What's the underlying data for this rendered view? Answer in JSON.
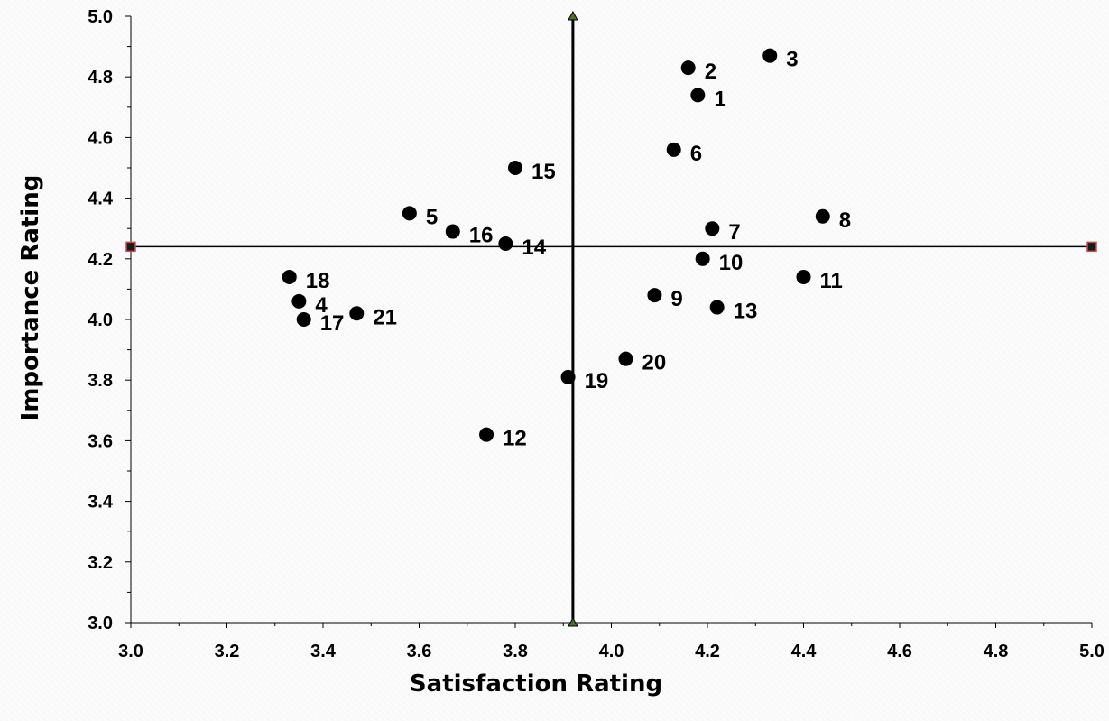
{
  "chart_data": {
    "type": "scatter",
    "title": "",
    "xlabel": "Satisfaction Rating",
    "ylabel": "Importance Rating",
    "xlim": [
      3.0,
      5.0
    ],
    "ylim": [
      3.0,
      5.0
    ],
    "x_ticks": [
      "3.0",
      "3.2",
      "3.4",
      "3.6",
      "3.8",
      "4.0",
      "4.2",
      "4.4",
      "4.6",
      "4.8",
      "5.0"
    ],
    "y_ticks": [
      "3.0",
      "3.2",
      "3.4",
      "3.6",
      "3.8",
      "4.0",
      "4.2",
      "4.4",
      "4.6",
      "4.8",
      "5.0"
    ],
    "grid": false,
    "reference_lines": {
      "vertical_x": 3.92,
      "horizontal_y": 4.24
    },
    "marker_color": "#000000",
    "points": [
      {
        "label": "1",
        "x": 4.18,
        "y": 4.74
      },
      {
        "label": "2",
        "x": 4.16,
        "y": 4.83
      },
      {
        "label": "3",
        "x": 4.33,
        "y": 4.87
      },
      {
        "label": "4",
        "x": 3.35,
        "y": 4.06
      },
      {
        "label": "5",
        "x": 3.58,
        "y": 4.35
      },
      {
        "label": "6",
        "x": 4.13,
        "y": 4.56
      },
      {
        "label": "7",
        "x": 4.21,
        "y": 4.3
      },
      {
        "label": "8",
        "x": 4.44,
        "y": 4.34
      },
      {
        "label": "9",
        "x": 4.09,
        "y": 4.08
      },
      {
        "label": "10",
        "x": 4.19,
        "y": 4.2
      },
      {
        "label": "11",
        "x": 4.4,
        "y": 4.14
      },
      {
        "label": "12",
        "x": 3.74,
        "y": 3.62
      },
      {
        "label": "13",
        "x": 4.22,
        "y": 4.04
      },
      {
        "label": "14",
        "x": 3.78,
        "y": 4.25
      },
      {
        "label": "15",
        "x": 3.8,
        "y": 4.5
      },
      {
        "label": "16",
        "x": 3.67,
        "y": 4.29
      },
      {
        "label": "17",
        "x": 3.36,
        "y": 4.0
      },
      {
        "label": "18",
        "x": 3.33,
        "y": 4.14
      },
      {
        "label": "19",
        "x": 3.91,
        "y": 3.81
      },
      {
        "label": "20",
        "x": 4.03,
        "y": 3.87
      },
      {
        "label": "21",
        "x": 3.47,
        "y": 4.02
      }
    ]
  }
}
